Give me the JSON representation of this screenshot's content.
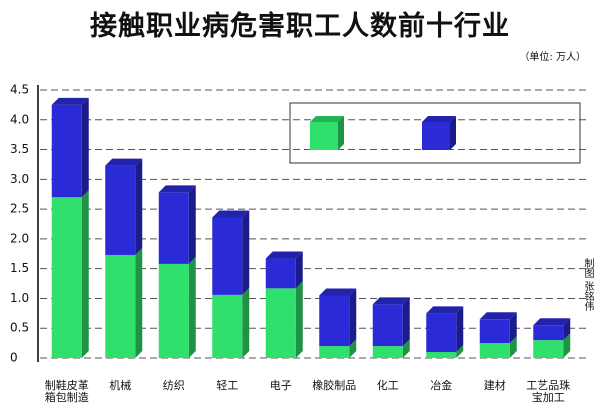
{
  "chart_data": {
    "type": "bar",
    "stacked": true,
    "title": "接触职业病危害职工人数前十行业",
    "subtitle": "（单位: 万人）",
    "credit": "制图 张铭伟",
    "categories": [
      "制鞋皮革箱包制造",
      "机械",
      "纺织",
      "轻工",
      "电子",
      "橡胶制品",
      "化工",
      "冶金",
      "建材",
      "工艺品珠宝加工"
    ],
    "series": [
      {
        "color": "#2fe06c",
        "values": [
          2.7,
          1.73,
          1.58,
          1.06,
          1.17,
          0.2,
          0.2,
          0.1,
          0.25,
          0.3
        ]
      },
      {
        "color": "#2a2ad6",
        "values": [
          1.55,
          1.5,
          1.2,
          1.3,
          0.5,
          0.85,
          0.7,
          0.65,
          0.4,
          0.25
        ]
      }
    ],
    "ylim": [
      0,
      4.5
    ],
    "yticks": [
      0,
      0.5,
      {
        "value": 1,
        "label": "1.0"
      },
      1.5,
      {
        "value": 2,
        "label": "2.0"
      },
      2.5,
      {
        "value": 3,
        "label": "3.0"
      },
      3.5,
      {
        "value": 4,
        "label": "4.0"
      },
      4.5
    ],
    "grid": true
  }
}
